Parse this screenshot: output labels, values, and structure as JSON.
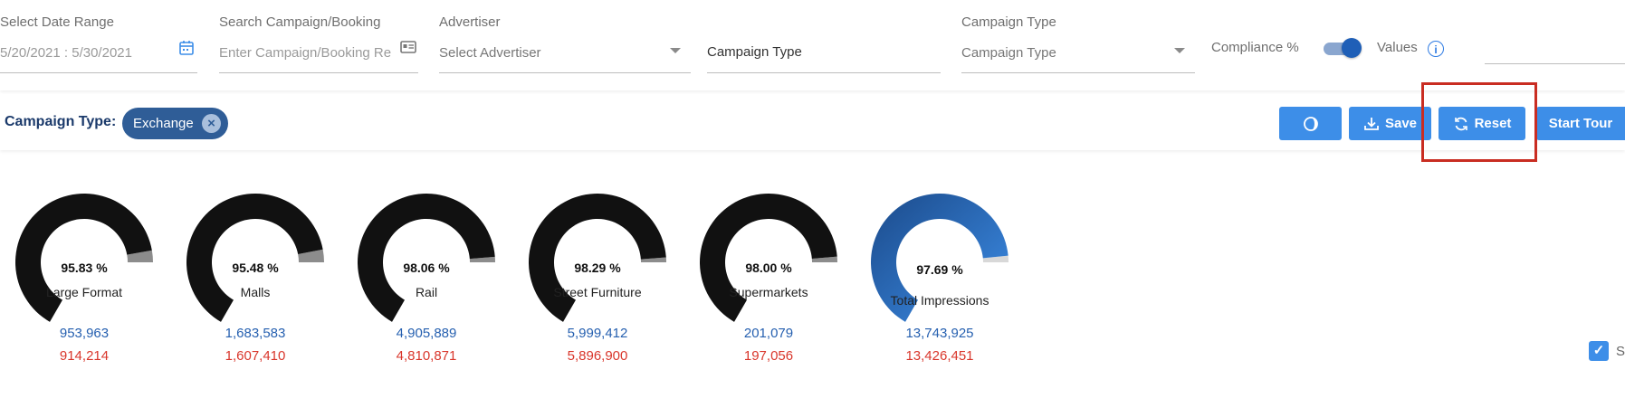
{
  "filters": {
    "date_range": {
      "label": "Select Date Range",
      "value": "5/20/2021 : 5/30/2021"
    },
    "search": {
      "label": "Search Campaign/Booking",
      "placeholder": "Enter Campaign/Booking Re"
    },
    "advertiser": {
      "label": "Advertiser",
      "placeholder": "Select Advertiser"
    },
    "campaign_type_input": {
      "value": "Campaign Type"
    },
    "campaign_type": {
      "label": "Campaign Type",
      "placeholder": "Campaign Type"
    },
    "compliance_label": "Compliance %",
    "values_label": "Values",
    "info_glyph": "i"
  },
  "active_filter": {
    "label": "Campaign Type:",
    "chip": "Exchange",
    "chip_close": "×"
  },
  "actions": {
    "save": "Save",
    "reset": "Reset",
    "start_tour": "Start Tour"
  },
  "gauges": [
    {
      "name": "Large Format",
      "percent": "95.83 %",
      "value": 95.83,
      "primary": "953,963",
      "secondary": "914,214"
    },
    {
      "name": "Malls",
      "percent": "95.48 %",
      "value": 95.48,
      "primary": "1,683,583",
      "secondary": "1,607,410"
    },
    {
      "name": "Rail",
      "percent": "98.06 %",
      "value": 98.06,
      "primary": "4,905,889",
      "secondary": "4,810,871"
    },
    {
      "name": "Street Furniture",
      "percent": "98.29 %",
      "value": 98.29,
      "primary": "5,999,412",
      "secondary": "5,896,900"
    },
    {
      "name": "Supermarkets",
      "percent": "98.00 %",
      "value": 98.0,
      "primary": "201,079",
      "secondary": "197,056"
    },
    {
      "name": "Total Impressions",
      "percent": "97.69 %",
      "value": 97.69,
      "primary": "13,743,925",
      "secondary": "13,426,451"
    }
  ],
  "footer": {
    "checkbox_label": "S",
    "check_glyph": "✓"
  },
  "colors": {
    "accent": "#3d8ee8",
    "gauge_fill": "#111111",
    "gauge_total": "#1f5fb7",
    "primary_value": "#2660b0",
    "secondary_value": "#d9362b",
    "highlight": "#c92d22"
  }
}
